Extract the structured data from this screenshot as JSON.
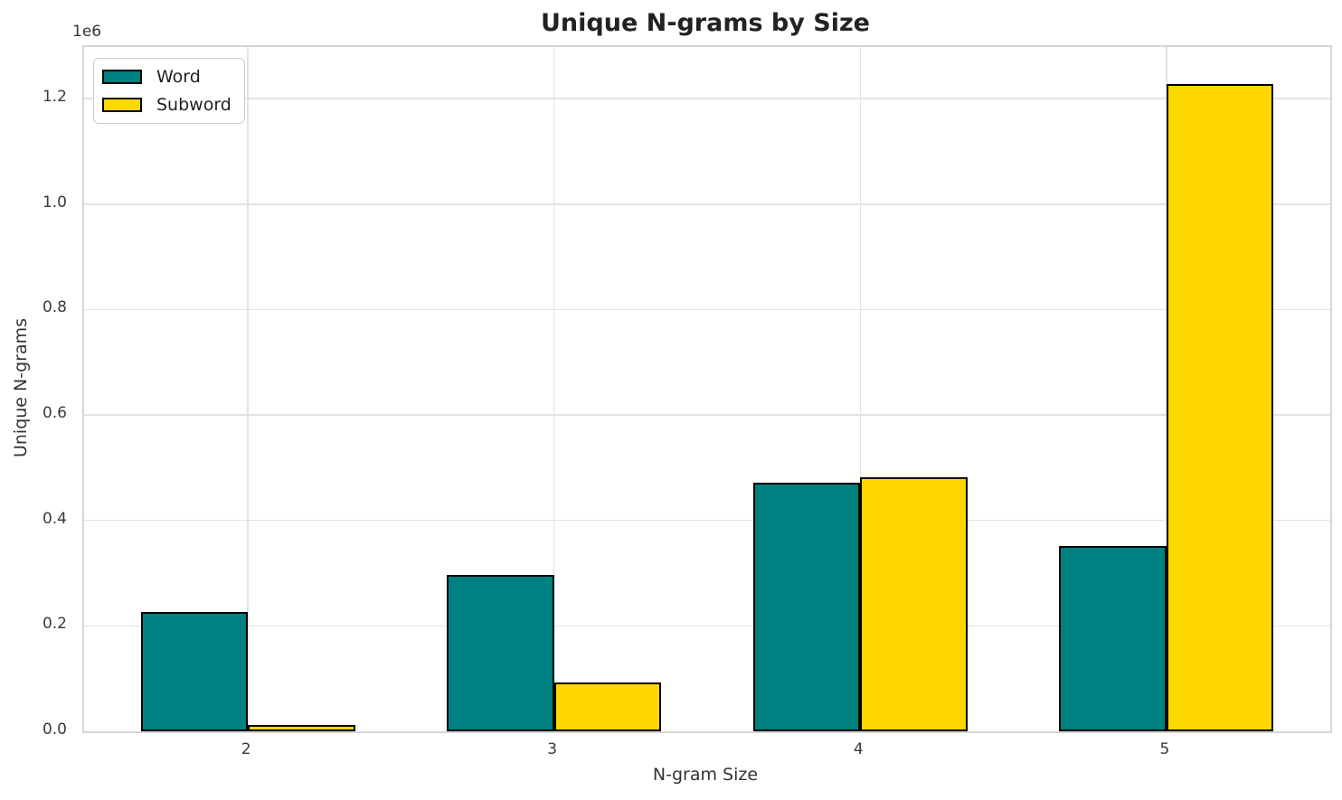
{
  "chart_data": {
    "type": "bar",
    "title": "Unique N-grams by Size",
    "xlabel": "N-gram Size",
    "ylabel": "Unique N-grams",
    "offset_text": "1e6",
    "x": [
      2,
      3,
      4,
      5
    ],
    "categories": [
      "2",
      "3",
      "4",
      "5"
    ],
    "series": [
      {
        "name": "Word",
        "color": "#008080",
        "values": [
          226000,
          297000,
          472000,
          352000
        ]
      },
      {
        "name": "Subword",
        "color": "#FFD700",
        "values": [
          12000,
          92000,
          482000,
          1228000
        ]
      }
    ],
    "bar_width": 0.35,
    "bar_edge_color": "#000000",
    "xlim": [
      1.465,
      5.535
    ],
    "ylim": [
      0,
      1298000
    ],
    "yticks": [
      0,
      200000,
      400000,
      600000,
      800000,
      1000000,
      1200000
    ],
    "ytick_labels": [
      "0.0",
      "0.2",
      "0.4",
      "0.6",
      "0.8",
      "1.0",
      "1.2"
    ],
    "grid": true,
    "legend_position": "upper left",
    "background": "#ffffff"
  }
}
